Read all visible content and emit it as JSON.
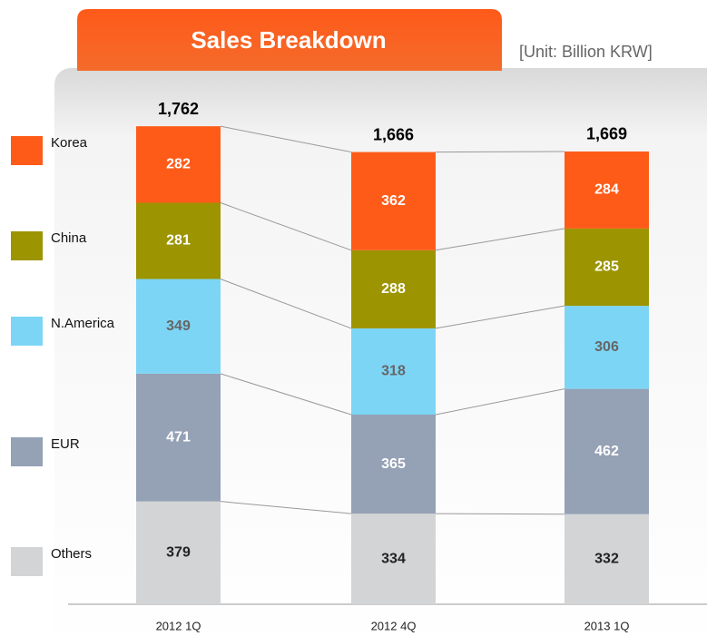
{
  "chart_data": {
    "type": "stacked_bar",
    "title": "Sales Breakdown",
    "subtitle": "[Unit: Billion KRW]",
    "categories": [
      "2012 1Q",
      "2012 4Q",
      "2013 1Q"
    ],
    "series": [
      {
        "name": "Others",
        "color": "#d3d4d6",
        "label_color": "#222222",
        "values": [
          379,
          334,
          332
        ]
      },
      {
        "name": "EUR",
        "color": "#95a1b5",
        "label_color": "#ffffff",
        "values": [
          471,
          365,
          462
        ]
      },
      {
        "name": "N.America",
        "color": "#7dd5f5",
        "label_color": "#666666",
        "values": [
          349,
          318,
          306
        ]
      },
      {
        "name": "China",
        "color": "#9c9400",
        "label_color": "#ffffff",
        "values": [
          281,
          288,
          285
        ]
      },
      {
        "name": "Korea",
        "color": "#fe5b19",
        "label_color": "#ffffff",
        "values": [
          282,
          362,
          284
        ]
      }
    ],
    "totals": {
      "values": [
        1762,
        1666,
        1669
      ],
      "value_labels": [
        "1,762",
        "1,666",
        "1,669"
      ]
    }
  }
}
